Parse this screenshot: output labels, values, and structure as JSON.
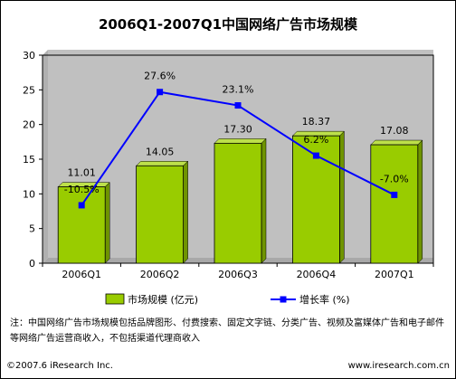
{
  "chart_data": {
    "type": "bar",
    "title": "2006Q1-2007Q1中国网络广告市场规模",
    "categories": [
      "2006Q1",
      "2006Q2",
      "2006Q3",
      "2006Q4",
      "2007Q1"
    ],
    "series": [
      {
        "name": "市场规模 (亿元)",
        "type": "bar",
        "axis": "left",
        "values": [
          11.01,
          14.05,
          17.3,
          18.37,
          17.08
        ],
        "labels": [
          "11.01",
          "14.05",
          "17.30",
          "18.37",
          "17.08"
        ],
        "color": "#99cc00"
      },
      {
        "name": "增长率 (%)",
        "type": "line",
        "axis": "hidden",
        "values": [
          -10.5,
          27.6,
          23.1,
          6.2,
          -7.0
        ],
        "labels": [
          "-10.5%",
          "27.6%",
          "23.1%",
          "6.2%",
          "-7.0%"
        ],
        "color": "#0000ff"
      }
    ],
    "ylim": [
      0,
      30
    ],
    "yticks": [
      0,
      5,
      10,
      15,
      20,
      25,
      30
    ],
    "ytick_labels": [
      "0",
      "5",
      "10",
      "15",
      "20",
      "25",
      "30"
    ],
    "grid": false,
    "legend_position": "bottom"
  },
  "note": "注：中国网络广告市场规模包括品牌图形、付费搜索、固定文字链、分类广告、视频及富媒体广告和电子邮件等网络广告运营商收入，不包括渠道代理商收入",
  "footer": {
    "copyright": "©2007.6 iResearch Inc.",
    "url": "www.iresearch.com.cn"
  }
}
